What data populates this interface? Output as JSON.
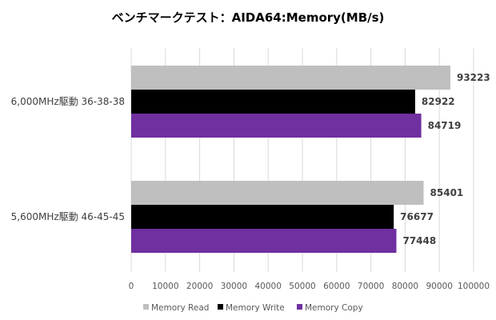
{
  "chart_data": {
    "type": "bar",
    "orientation": "horizontal",
    "title": "ベンチマークテスト：AIDA64:Memory(MB/s)",
    "xlabel": "",
    "ylabel": "",
    "xlim": [
      0,
      100000
    ],
    "xticks": [
      0,
      10000,
      20000,
      30000,
      40000,
      50000,
      60000,
      70000,
      80000,
      90000,
      100000
    ],
    "grid": true,
    "legend_position": "bottom",
    "categories": [
      "6,000MHz駆動 36-38-38",
      "5,600MHz駆動 46-45-45"
    ],
    "series": [
      {
        "name": "Memory Read",
        "color": "#bfbfbf",
        "values": [
          93223,
          85401
        ]
      },
      {
        "name": "Memory Write",
        "color": "#000000",
        "values": [
          82922,
          76677
        ]
      },
      {
        "name": "Memory Copy",
        "color": "#7030a0",
        "values": [
          84719,
          77448
        ]
      }
    ]
  }
}
